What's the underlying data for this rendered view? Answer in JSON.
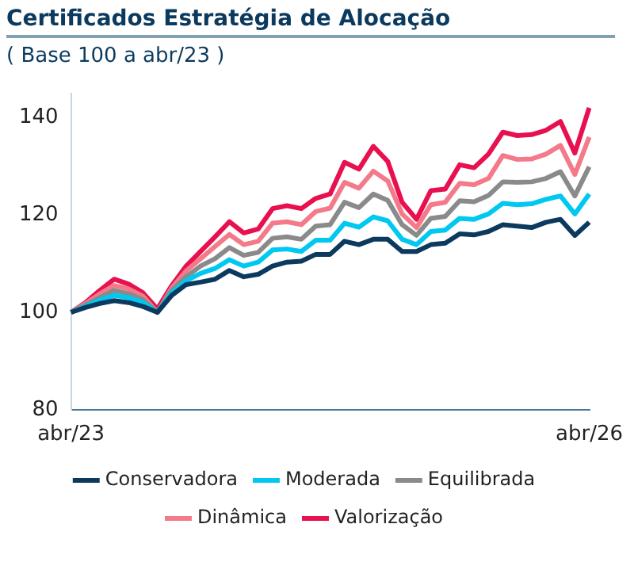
{
  "chart_data": {
    "type": "line",
    "title": "Certificados Estratégia de Alocação",
    "subtitle": "( Base 100 a abr/23 )",
    "categories": [
      "abr/23",
      null,
      null,
      null,
      null,
      null,
      null,
      null,
      null,
      null,
      null,
      null,
      null,
      null,
      null,
      null,
      null,
      null,
      null,
      null,
      null,
      null,
      null,
      null,
      null,
      null,
      null,
      null,
      null,
      null,
      null,
      null,
      null,
      null,
      null,
      null,
      "abr/26"
    ],
    "series": [
      {
        "name": "Conservadora",
        "color": "#0b3a5e",
        "values": [
          100,
          101,
          101.8,
          102.4,
          102,
          101.2,
          100,
          103.5,
          105.7,
          106.2,
          106.8,
          108.6,
          107.3,
          107.8,
          109.5,
          110.3,
          110.5,
          111.9,
          111.9,
          114.6,
          113.9,
          115,
          115,
          112.5,
          112.5,
          113.9,
          114.2,
          116.1,
          115.9,
          116.6,
          118,
          117.7,
          117.4,
          118.5,
          119.1,
          115.8,
          118.5
        ]
      },
      {
        "name": "Moderada",
        "color": "#00c8f0",
        "values": [
          100,
          101.2,
          102.5,
          103.5,
          103,
          102,
          100,
          104,
          106.5,
          108,
          109,
          110.8,
          109.5,
          110.3,
          112.8,
          113,
          112.5,
          114.8,
          114.8,
          118.3,
          117.5,
          119.6,
          118.8,
          115,
          113.9,
          116.6,
          116.9,
          119.3,
          119.1,
          120.2,
          122.4,
          122.1,
          122.3,
          123.2,
          123.9,
          120.2,
          124.3
        ]
      },
      {
        "name": "Equilibrada",
        "color": "#8a8a8a",
        "values": [
          100,
          101.5,
          103,
          104.5,
          103.8,
          102.6,
          100,
          104.5,
          107.3,
          109.5,
          111,
          113.3,
          111.7,
          112.3,
          115.2,
          115.5,
          115,
          117.7,
          118,
          122.6,
          121.5,
          124.3,
          123,
          118,
          115.8,
          119.3,
          119.7,
          122.9,
          122.7,
          124,
          126.8,
          126.7,
          126.8,
          127.5,
          128.9,
          123.9,
          129.9
        ]
      },
      {
        "name": "Dinâmica",
        "color": "#f47a8a",
        "values": [
          100,
          101.8,
          103.8,
          105.5,
          104.8,
          103.3,
          100,
          105,
          108.5,
          111,
          113.5,
          116,
          113.9,
          114.6,
          118.3,
          118.6,
          118,
          120.7,
          121.4,
          126.7,
          125.5,
          129,
          127,
          120.2,
          117.4,
          122.1,
          122.6,
          126.5,
          126.2,
          127.5,
          132.2,
          131.4,
          131.5,
          132.5,
          134.3,
          128.3,
          136
        ]
      },
      {
        "name": "Valorização",
        "color": "#e8104f",
        "values": [
          100,
          102,
          104.5,
          106.8,
          105.8,
          104,
          100.7,
          105.5,
          109.5,
          112.5,
          115.5,
          118.6,
          116.3,
          117.1,
          121.3,
          121.9,
          121.3,
          123.4,
          124.3,
          130.8,
          129.4,
          134.1,
          131,
          122.6,
          119.1,
          125,
          125.3,
          130.3,
          129.7,
          132.5,
          137,
          136.3,
          136.5,
          137.4,
          139.2,
          132.7,
          142
        ]
      }
    ],
    "ylim": [
      80,
      145
    ],
    "yticks": [
      80,
      100,
      120,
      140
    ],
    "grid": false,
    "legend": "bottom",
    "marker": "none",
    "line_style": "solid"
  }
}
